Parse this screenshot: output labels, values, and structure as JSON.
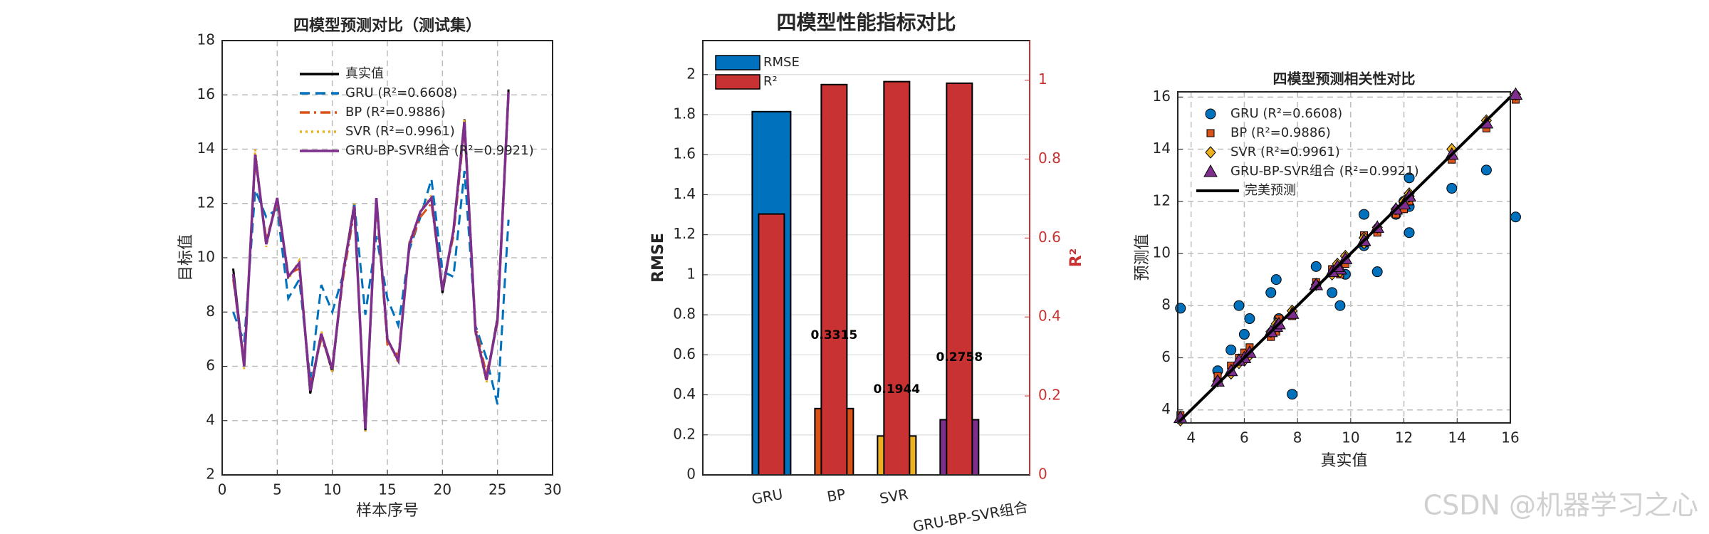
{
  "chart_data": [
    {
      "type": "line",
      "title": "四模型预测对比（测试集）",
      "xlabel": "样本序号",
      "ylabel": "目标值",
      "x": [
        1,
        2,
        3,
        4,
        5,
        6,
        7,
        8,
        9,
        10,
        11,
        12,
        13,
        14,
        15,
        16,
        17,
        18,
        19,
        20,
        21,
        22,
        23,
        24,
        25,
        26
      ],
      "xlim": [
        0,
        30
      ],
      "xticks": [
        0,
        5,
        10,
        15,
        20,
        25,
        30
      ],
      "ylim": [
        2,
        18
      ],
      "yticks": [
        2,
        4,
        6,
        8,
        10,
        12,
        14,
        16,
        18
      ],
      "grid": true,
      "legend": "top",
      "series": [
        {
          "name": "真实值",
          "color": "#000000",
          "style": "solid",
          "values": [
            9.6,
            6.0,
            13.8,
            10.5,
            12.2,
            9.3,
            9.8,
            5.0,
            7.2,
            5.8,
            9.5,
            12.0,
            3.6,
            12.2,
            7.0,
            6.2,
            10.5,
            11.7,
            12.2,
            8.7,
            11.0,
            15.1,
            7.3,
            5.5,
            7.8,
            16.2
          ]
        },
        {
          "name": "GRU (R²=0.6608)",
          "color": "#0072bd",
          "style": "dashed",
          "values": [
            8.0,
            6.9,
            12.5,
            11.5,
            11.8,
            8.5,
            9.2,
            5.5,
            9.0,
            8.0,
            9.4,
            12.0,
            7.9,
            10.8,
            8.5,
            7.5,
            10.3,
            11.5,
            12.9,
            9.5,
            9.3,
            13.2,
            7.5,
            6.3,
            4.6,
            11.4
          ]
        },
        {
          "name": "BP (R²=0.9886)",
          "color": "#d95319",
          "style": "dashdot",
          "values": [
            9.2,
            6.2,
            13.6,
            10.7,
            12.0,
            9.4,
            9.6,
            5.3,
            7.0,
            6.0,
            9.3,
            11.7,
            3.8,
            12.0,
            6.8,
            6.4,
            10.4,
            11.5,
            12.0,
            8.9,
            10.8,
            14.8,
            7.5,
            5.7,
            7.6,
            15.9
          ]
        },
        {
          "name": "SVR (R²=0.9961)",
          "color": "#edb120",
          "style": "dotted",
          "values": [
            9.3,
            5.9,
            14.0,
            10.4,
            12.2,
            9.2,
            9.9,
            5.1,
            7.3,
            5.8,
            9.6,
            12.0,
            3.6,
            12.2,
            7.0,
            6.1,
            10.6,
            11.7,
            12.3,
            8.8,
            11.0,
            15.1,
            7.2,
            5.4,
            7.8,
            16.1
          ]
        },
        {
          "name": "GRU-BP-SVR组合 (R²=0.9921)",
          "color": "#7e2f8e",
          "style": "solid",
          "values": [
            9.4,
            6.0,
            13.8,
            10.5,
            12.2,
            9.3,
            9.8,
            5.1,
            7.2,
            5.9,
            9.5,
            11.9,
            3.7,
            12.2,
            7.0,
            6.2,
            10.5,
            11.7,
            12.2,
            8.8,
            11.0,
            15.0,
            7.3,
            5.5,
            7.7,
            16.1
          ]
        }
      ]
    },
    {
      "type": "bar",
      "title": "四模型性能指标对比",
      "ylabel": "RMSE",
      "y2label": "R²",
      "categories": [
        "GRU",
        "BP",
        "SVR",
        "GRU-BP-SVR组合"
      ],
      "ylim": [
        0,
        2.17
      ],
      "yticks": [
        0,
        0.2,
        0.4,
        0.6,
        0.8,
        1,
        1.2,
        1.4,
        1.6,
        1.8,
        2
      ],
      "y2lim": [
        0,
        1.1
      ],
      "y2ticks": [
        0,
        0.2,
        0.4,
        0.6,
        0.8,
        1
      ],
      "y2color": "#c83232",
      "grid": true,
      "legend": "upper-left",
      "series": [
        {
          "name": "RMSE",
          "color": "#0072bd",
          "colors": [
            "#0072bd",
            "#d95319",
            "#edb120",
            "#7e2f8e"
          ],
          "values": [
            1.815,
            0.3315,
            0.1944,
            0.2758
          ],
          "value_labels": [
            null,
            "0.3315",
            "0.1944",
            "0.2758"
          ]
        },
        {
          "name": "R²",
          "color": "#c83232",
          "axis": "y2",
          "values": [
            0.6608,
            0.9886,
            0.9961,
            0.9921
          ]
        }
      ]
    },
    {
      "type": "scatter",
      "title": "四模型预测相关性对比",
      "xlabel": "真实值",
      "ylabel": "预测值",
      "x": [
        9.6,
        6.0,
        13.8,
        10.5,
        12.2,
        9.3,
        9.8,
        5.0,
        7.2,
        5.8,
        9.5,
        12.0,
        3.6,
        12.2,
        7.0,
        6.2,
        10.5,
        11.7,
        12.2,
        8.7,
        11.0,
        15.1,
        7.3,
        5.5,
        7.8,
        16.2
      ],
      "xlim": [
        3.5,
        16
      ],
      "xticks": [
        4,
        6,
        8,
        10,
        12,
        14,
        16
      ],
      "ylim": [
        3.5,
        16.2
      ],
      "yticks": [
        4,
        6,
        8,
        10,
        12,
        14,
        16
      ],
      "grid": true,
      "legend": "upper-left",
      "series": [
        {
          "name": "GRU (R²=0.6608)",
          "color": "#0072bd",
          "marker": "circle",
          "values": [
            8.0,
            6.9,
            12.5,
            11.5,
            11.8,
            8.5,
            9.2,
            5.5,
            9.0,
            8.0,
            9.4,
            12.0,
            7.9,
            10.8,
            8.5,
            7.5,
            10.3,
            11.5,
            12.9,
            9.5,
            9.3,
            13.2,
            7.5,
            6.3,
            4.6,
            11.4
          ]
        },
        {
          "name": "BP (R²=0.9886)",
          "color": "#d95319",
          "marker": "square",
          "values": [
            9.2,
            6.2,
            13.6,
            10.7,
            12.0,
            9.4,
            9.6,
            5.3,
            7.0,
            6.0,
            9.3,
            11.7,
            3.8,
            12.0,
            6.8,
            6.4,
            10.4,
            11.5,
            12.0,
            8.9,
            10.8,
            14.8,
            7.5,
            5.7,
            7.6,
            15.9
          ]
        },
        {
          "name": "SVR (R²=0.9961)",
          "color": "#edb120",
          "marker": "diamond",
          "values": [
            9.3,
            5.9,
            14.0,
            10.4,
            12.2,
            9.2,
            9.9,
            5.1,
            7.3,
            5.8,
            9.6,
            12.0,
            3.6,
            12.2,
            7.0,
            6.1,
            10.6,
            11.7,
            12.3,
            8.8,
            11.0,
            15.1,
            7.2,
            5.4,
            7.8,
            16.1
          ]
        },
        {
          "name": "GRU-BP-SVR组合 (R²=0.9921)",
          "color": "#7e2f8e",
          "marker": "triangle",
          "values": [
            9.4,
            6.0,
            13.8,
            10.5,
            12.2,
            9.3,
            9.8,
            5.1,
            7.2,
            5.9,
            9.5,
            11.9,
            3.7,
            12.2,
            7.0,
            6.2,
            10.5,
            11.7,
            12.2,
            8.8,
            11.0,
            15.0,
            7.3,
            5.5,
            7.7,
            16.1
          ]
        },
        {
          "name": "完美预测",
          "color": "#000000",
          "marker": "line",
          "x": [
            3.5,
            16
          ],
          "values": [
            3.5,
            16
          ]
        }
      ]
    }
  ],
  "watermark": "CSDN @机器学习之心"
}
